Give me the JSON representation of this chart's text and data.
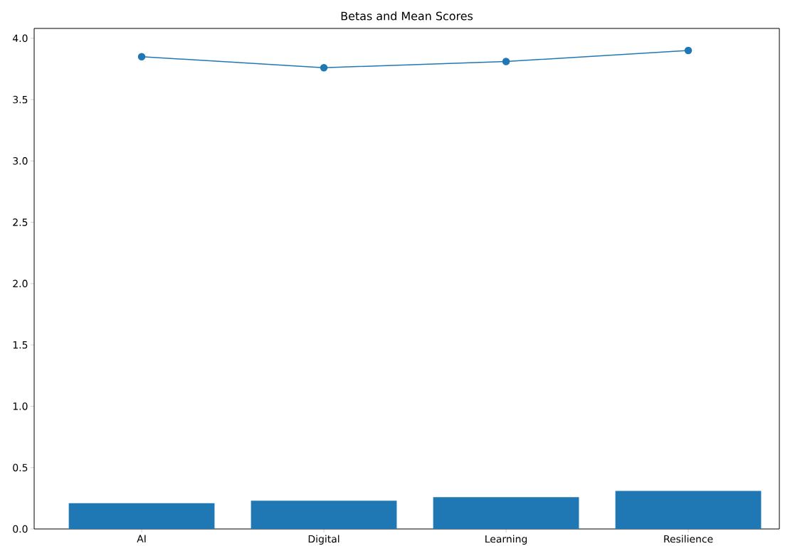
{
  "chart_data": {
    "type": "bar",
    "title": "Betas and Mean Scores",
    "categories": [
      "AI",
      "Digital",
      "Learning",
      "Resilience"
    ],
    "series": [
      {
        "color": "#1f77b4",
        "values": [
          0.21,
          0.23,
          0.26,
          0.31
        ]
      },
      {
        "type": "line",
        "color": "#1f77b4",
        "marker": "circle",
        "values": [
          3.85,
          3.76,
          3.81,
          3.9
        ]
      }
    ],
    "ylim": [
      0,
      4.08
    ],
    "yticks": [
      {
        "value": 0,
        "label": "0.0"
      },
      {
        "value": 0.5,
        "label": "0.5"
      },
      {
        "value": 1,
        "label": "1.0"
      },
      {
        "value": 1.5,
        "label": "1.5"
      },
      {
        "value": 2,
        "label": "2.0"
      },
      {
        "value": 2.5,
        "label": "2.5"
      },
      {
        "value": 3,
        "label": "3.0"
      },
      {
        "value": 3.5,
        "label": "3.5"
      },
      {
        "value": 4,
        "label": "4.0"
      }
    ]
  }
}
